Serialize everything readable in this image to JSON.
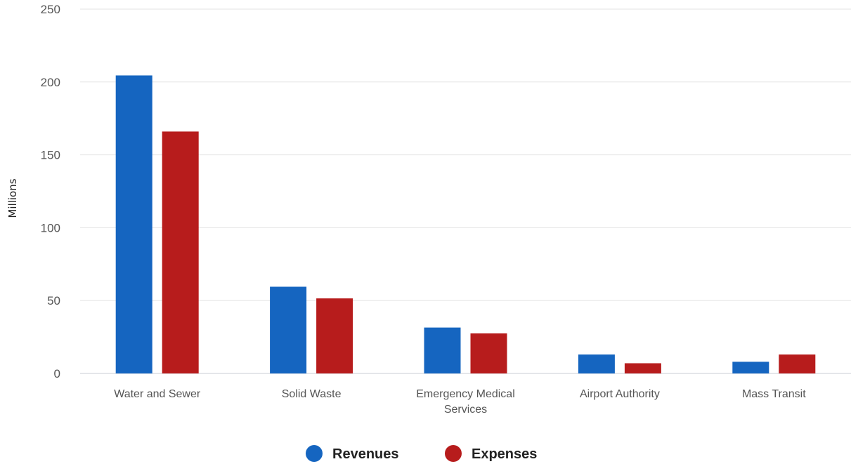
{
  "chart_data": {
    "type": "bar",
    "ylabel": "Millions",
    "xlabel": "",
    "ylim": [
      0,
      250
    ],
    "yticks": [
      0,
      50,
      100,
      150,
      200,
      250
    ],
    "categories": [
      [
        "Water and Sewer"
      ],
      [
        "Solid Waste"
      ],
      [
        "Emergency Medical",
        "Services"
      ],
      [
        "Airport Authority"
      ],
      [
        "Mass Transit"
      ]
    ],
    "series": [
      {
        "name": "Revenues",
        "color": "#1565c0",
        "values": [
          204.5,
          59.5,
          31.5,
          13,
          8
        ]
      },
      {
        "name": "Expenses",
        "color": "#b71c1c",
        "values": [
          166,
          51.5,
          27.5,
          7,
          13
        ]
      }
    ],
    "grid": true,
    "legend_position": "bottom-center"
  }
}
